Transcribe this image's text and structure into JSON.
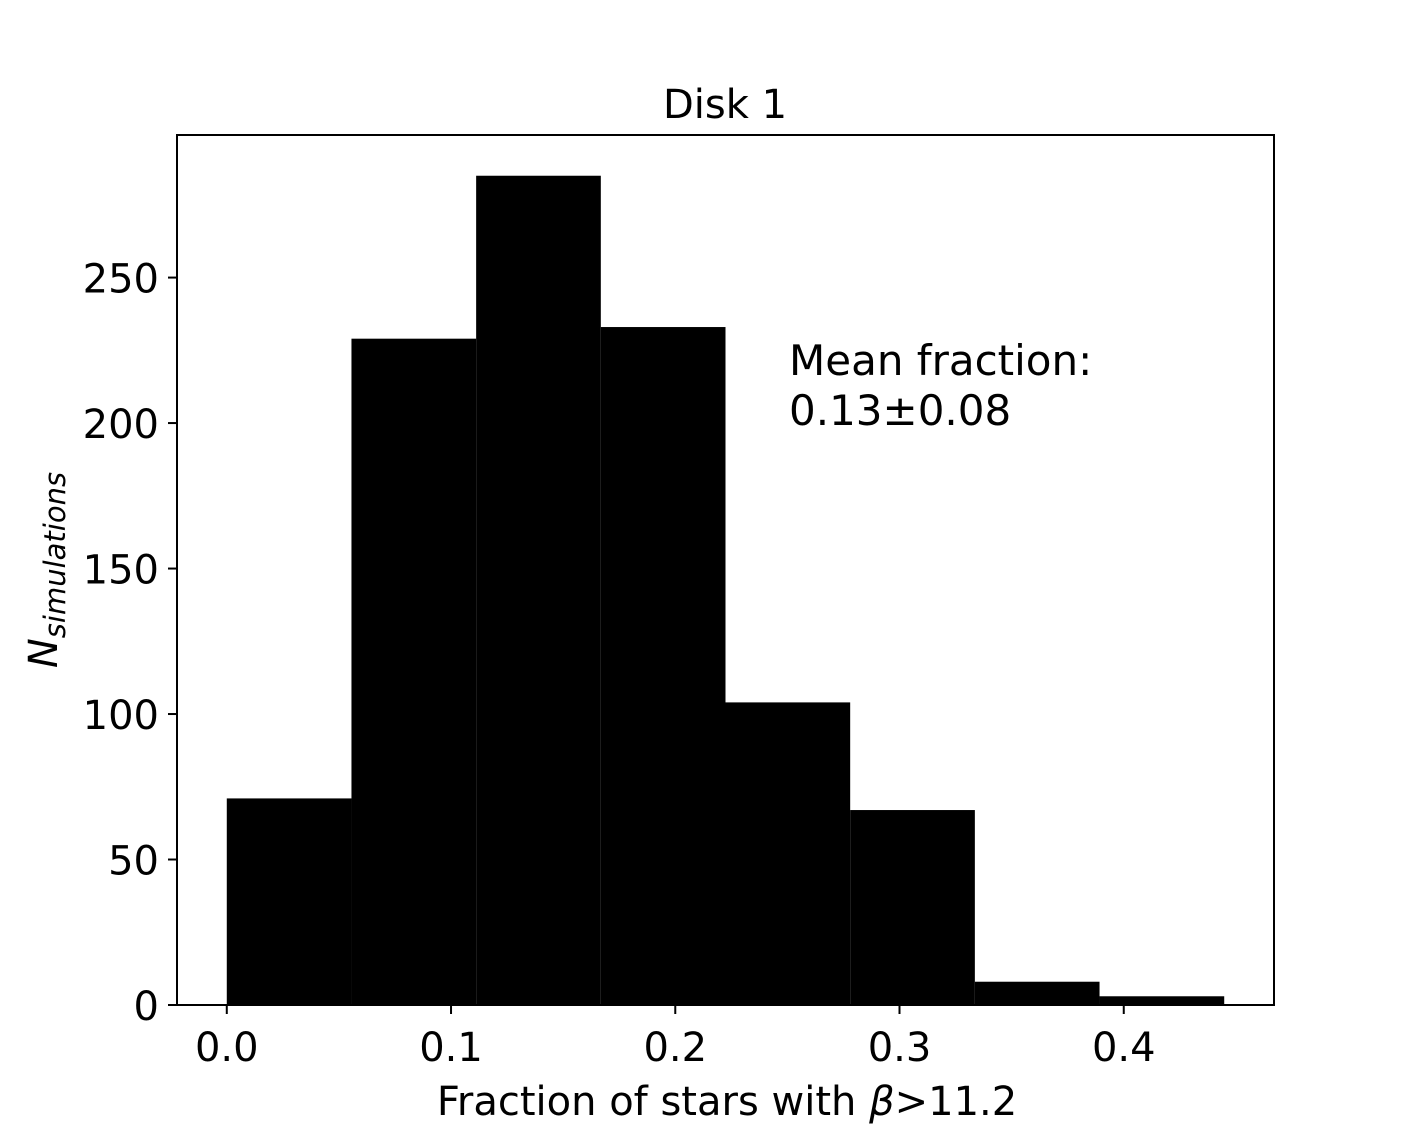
{
  "chart_data": {
    "type": "bar",
    "subtype": "histogram",
    "title": "Disk 1",
    "xlabel": {
      "prefix": "Fraction of stars with ",
      "symbol": "β",
      "suffix": ">11.2"
    },
    "ylabel": {
      "main": "N",
      "subscript": "simulations"
    },
    "bin_edges": [
      0.0,
      0.0556,
      0.1112,
      0.1668,
      0.2224,
      0.278,
      0.3336,
      0.3892,
      0.4448
    ],
    "values": [
      71,
      229,
      285,
      233,
      104,
      67,
      8,
      3
    ],
    "bar_color": "#000000",
    "xlim": [
      -0.0222,
      0.467
    ],
    "ylim": [
      0,
      299
    ],
    "xticks": [
      0.0,
      0.1,
      0.2,
      0.3,
      0.4
    ],
    "xtick_labels": [
      "0.0",
      "0.1",
      "0.2",
      "0.3",
      "0.4"
    ],
    "yticks": [
      0,
      50,
      100,
      150,
      200,
      250
    ],
    "ytick_labels": [
      "0",
      "50",
      "100",
      "150",
      "200",
      "250"
    ],
    "grid": false,
    "annotation": {
      "line1": "Mean fraction:",
      "line2": "0.13±0.08"
    }
  }
}
